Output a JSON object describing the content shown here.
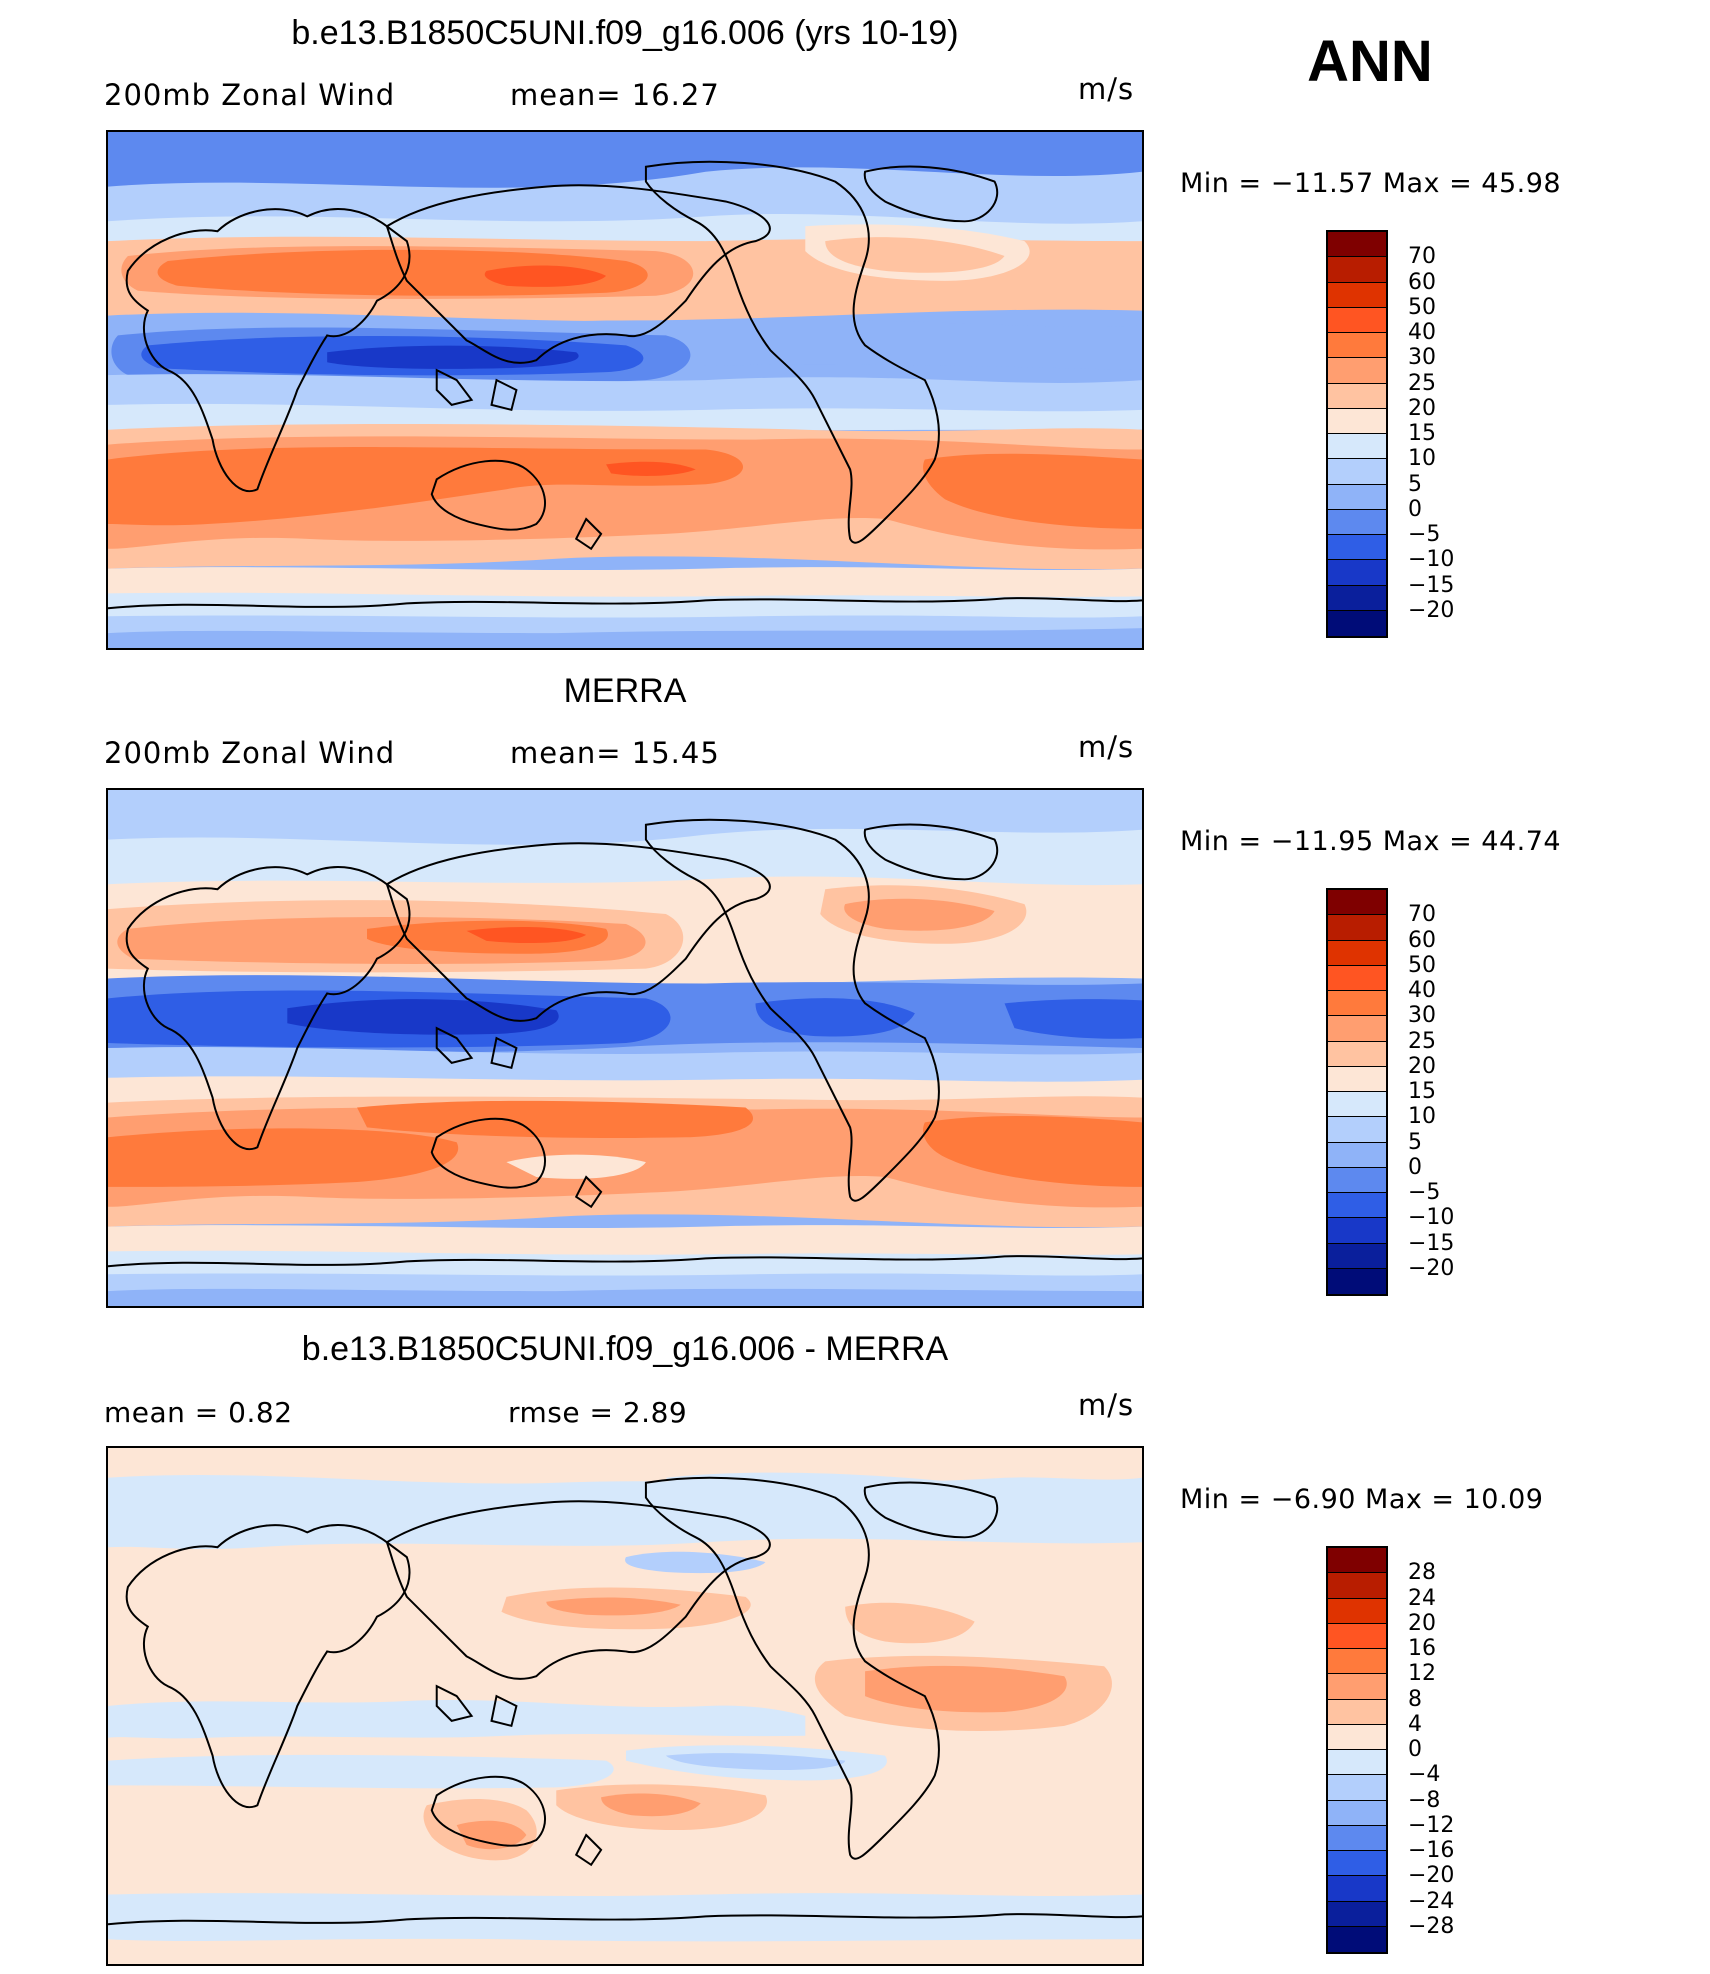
{
  "season": "ANN",
  "units": "m/s",
  "panels": [
    {
      "id": "model",
      "title": "b.e13.B1850C5UNI.f09_g16.006 (yrs 10-19)",
      "left_label": "200mb Zonal Wind",
      "right_label": "mean=   16.27",
      "units": "m/s",
      "minmax": "Min  =  −11.57  Max  =    45.98",
      "levels": [
        "70",
        "60",
        "50",
        "40",
        "30",
        "25",
        "20",
        "15",
        "10",
        "5",
        "0",
        "−5",
        "−10",
        "−15",
        "−20"
      ]
    },
    {
      "id": "obs",
      "title": "MERRA",
      "left_label": "200mb Zonal Wind",
      "right_label": "mean=   15.45",
      "units": "m/s",
      "minmax": "Min  =  −11.95  Max  =    44.74",
      "levels": [
        "70",
        "60",
        "50",
        "40",
        "30",
        "25",
        "20",
        "15",
        "10",
        "5",
        "0",
        "−5",
        "−10",
        "−15",
        "−20"
      ]
    },
    {
      "id": "diff",
      "title": "b.e13.B1850C5UNI.f09_g16.006 - MERRA",
      "left_label": "mean  =      0.82",
      "right_label": "rmse  =      2.89",
      "units": "m/s",
      "minmax": "Min  =     −6.90  Max  =    10.09",
      "levels": [
        "28",
        "24",
        "20",
        "16",
        "12",
        "8",
        "4",
        "0",
        "−4",
        "−8",
        "−12",
        "−16",
        "−20",
        "−24",
        "−28"
      ]
    }
  ],
  "colors": {
    "full_scale": [
      "#7f0000",
      "#b81d00",
      "#df3300",
      "#ff5522",
      "#ff7a3c",
      "#ff9e70",
      "#ffc3a1",
      "#fde6d6",
      "#d6e8fb",
      "#b3cffc",
      "#8fb3f8",
      "#5d89ef",
      "#2f5ee6",
      "#1838c8",
      "#0a1f9c",
      "#000c78"
    ],
    "diff_scale": [
      "#7f0000",
      "#b81d00",
      "#df3300",
      "#ff5522",
      "#ff7a3c",
      "#ff9e70",
      "#ffc3a1",
      "#fde6d6",
      "#d6e8fb",
      "#b3cffc",
      "#8fb3f8",
      "#5d89ef",
      "#2f5ee6",
      "#1838c8",
      "#0a1f9c",
      "#000c78"
    ]
  }
}
